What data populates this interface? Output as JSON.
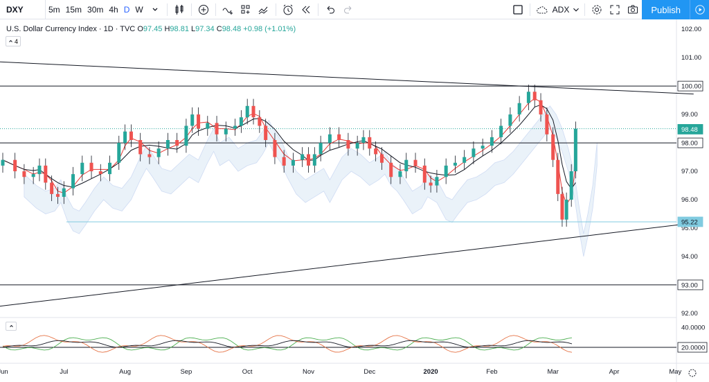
{
  "toolbar": {
    "symbol": "DXY",
    "intervals": [
      "5m",
      "15m",
      "30m",
      "4h",
      "D",
      "W"
    ],
    "active_interval": "D",
    "indicator_name": "ADX",
    "publish_label": "Publish"
  },
  "legend": {
    "title": "U.S. Dollar Currency Index · 1D · TVC",
    "o_label": "O",
    "o": "97.45",
    "h_label": "H",
    "h": "98.81",
    "l_label": "L",
    "l": "97.34",
    "c_label": "C",
    "c": "98.48",
    "change": "+0.98 (+1.01%)",
    "collapsed_count": "4"
  },
  "colors": {
    "up": "#26a69a",
    "down": "#ef5350",
    "accent": "#2196f3"
  },
  "chart_data": {
    "type": "candlestick",
    "price_axis": [
      "102.00",
      "101.00",
      "100.00",
      "99.00",
      "98.00",
      "97.00",
      "96.00",
      "95.00",
      "94.00",
      "93.00",
      "92.00"
    ],
    "price_ticks": [
      102,
      101,
      100,
      99,
      98,
      97,
      96,
      95,
      94,
      93,
      92
    ],
    "ylim": [
      91.9,
      102.2
    ],
    "time_axis": [
      {
        "label": "Jun",
        "m": 0
      },
      {
        "label": "Jul",
        "m": 1
      },
      {
        "label": "Aug",
        "m": 2
      },
      {
        "label": "Sep",
        "m": 3
      },
      {
        "label": "Oct",
        "m": 4
      },
      {
        "label": "Nov",
        "m": 5
      },
      {
        "label": "Dec",
        "m": 6
      },
      {
        "label": "2020",
        "m": 7
      },
      {
        "label": "Feb",
        "m": 8
      },
      {
        "label": "Mar",
        "m": 9
      },
      {
        "label": "Apr",
        "m": 10
      },
      {
        "label": "May",
        "m": 11
      }
    ],
    "price_labels": [
      {
        "text": "100.00",
        "value": 100.0,
        "bg": "#ffffff",
        "fg": "#131722",
        "border": "#131722"
      },
      {
        "text": "98.48",
        "value": 98.48,
        "bg": "#26a69a",
        "fg": "#ffffff",
        "border": "#26a69a"
      },
      {
        "text": "98.00",
        "value": 98.0,
        "bg": "#ffffff",
        "fg": "#131722",
        "border": "#131722"
      },
      {
        "text": "95.22",
        "value": 95.22,
        "bg": "#80cbe0",
        "fg": "#131722",
        "border": "#80cbe0"
      },
      {
        "text": "93.00",
        "value": 93.0,
        "bg": "#ffffff",
        "fg": "#131722",
        "border": "#131722"
      }
    ],
    "horizontal_levels": [
      100.0,
      98.0,
      93.0
    ],
    "support_level": 95.22,
    "trendlines": [
      {
        "m1": 0.0,
        "v1": 100.85,
        "m2": 11.3,
        "v2": 99.72
      },
      {
        "m1": 0.0,
        "v1": 92.25,
        "m2": 11.3,
        "v2": 95.18
      }
    ],
    "closes": [
      [
        0.0,
        97.4
      ],
      [
        0.2,
        97.0
      ],
      [
        0.35,
        96.8
      ],
      [
        0.5,
        96.9
      ],
      [
        0.6,
        97.2
      ],
      [
        0.7,
        96.6
      ],
      [
        0.8,
        96.2
      ],
      [
        0.9,
        96.1
      ],
      [
        1.0,
        96.4
      ],
      [
        1.15,
        96.9
      ],
      [
        1.3,
        97.3
      ],
      [
        1.45,
        97.0
      ],
      [
        1.6,
        96.9
      ],
      [
        1.75,
        97.3
      ],
      [
        1.9,
        98.0
      ],
      [
        2.0,
        98.4
      ],
      [
        2.1,
        98.1
      ],
      [
        2.25,
        97.6
      ],
      [
        2.4,
        97.5
      ],
      [
        2.55,
        97.8
      ],
      [
        2.7,
        98.1
      ],
      [
        2.85,
        97.9
      ],
      [
        3.0,
        98.6
      ],
      [
        3.1,
        99.0
      ],
      [
        3.2,
        98.5
      ],
      [
        3.35,
        98.7
      ],
      [
        3.5,
        98.3
      ],
      [
        3.65,
        98.5
      ],
      [
        3.8,
        98.6
      ],
      [
        3.9,
        98.9
      ],
      [
        4.0,
        99.3
      ],
      [
        4.1,
        98.9
      ],
      [
        4.2,
        98.6
      ],
      [
        4.3,
        98.1
      ],
      [
        4.45,
        97.5
      ],
      [
        4.6,
        97.2
      ],
      [
        4.75,
        97.4
      ],
      [
        4.9,
        97.6
      ],
      [
        5.0,
        97.2
      ],
      [
        5.1,
        97.6
      ],
      [
        5.2,
        98.0
      ],
      [
        5.35,
        98.3
      ],
      [
        5.5,
        98.1
      ],
      [
        5.65,
        97.8
      ],
      [
        5.8,
        98.0
      ],
      [
        5.9,
        98.2
      ],
      [
        6.0,
        97.8
      ],
      [
        6.1,
        97.6
      ],
      [
        6.2,
        97.3
      ],
      [
        6.35,
        96.8
      ],
      [
        6.5,
        97.0
      ],
      [
        6.6,
        97.4
      ],
      [
        6.75,
        97.2
      ],
      [
        6.9,
        96.6
      ],
      [
        7.0,
        96.5
      ],
      [
        7.1,
        96.8
      ],
      [
        7.25,
        97.2
      ],
      [
        7.4,
        97.3
      ],
      [
        7.55,
        97.5
      ],
      [
        7.7,
        97.8
      ],
      [
        7.85,
        97.9
      ],
      [
        8.0,
        98.2
      ],
      [
        8.15,
        98.6
      ],
      [
        8.3,
        99.0
      ],
      [
        8.45,
        99.4
      ],
      [
        8.6,
        99.8
      ],
      [
        8.7,
        99.5
      ],
      [
        8.8,
        99.0
      ],
      [
        8.9,
        98.3
      ],
      [
        9.0,
        97.4
      ],
      [
        9.08,
        96.2
      ],
      [
        9.15,
        95.3
      ],
      [
        9.22,
        96.0
      ],
      [
        9.3,
        97.0
      ],
      [
        9.37,
        98.5
      ]
    ],
    "oscillator_levels": [
      "40.0000",
      "20.0000"
    ]
  }
}
